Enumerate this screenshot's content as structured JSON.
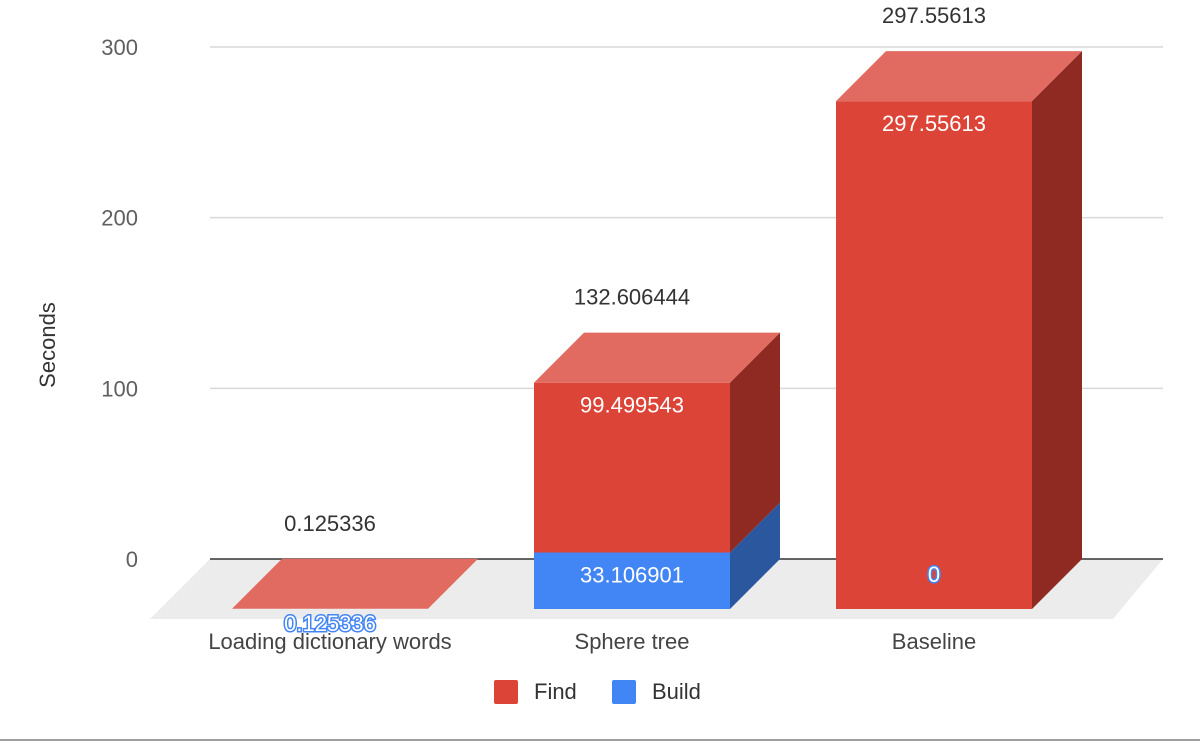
{
  "chart_data": {
    "type": "bar",
    "stacked": true,
    "style": "3d",
    "ylabel": "Seconds",
    "xlabel": "",
    "ylim": [
      0,
      300
    ],
    "yticks": [
      0,
      100,
      200,
      300
    ],
    "grid": true,
    "legend": "bottom",
    "categories": [
      "Loading dictionary words",
      "Sphere tree",
      "Baseline"
    ],
    "series": [
      {
        "name": "Build",
        "values": [
          0,
          33.106901,
          0
        ],
        "labels": [
          "",
          "33.106901",
          ""
        ],
        "color": "#4285f4",
        "side_color": "#2b579f"
      },
      {
        "name": "Find",
        "values": [
          0.125336,
          99.499543,
          297.55613
        ],
        "labels": [
          "0.125336",
          "99.499543",
          "297.55613"
        ],
        "color": "#db4437",
        "top_color": "#e16b60",
        "side_color": "#8e2a21"
      }
    ],
    "totals": [
      "0.125336",
      "132.606444",
      "297.55613"
    ],
    "zero_labels": [
      "",
      "",
      "0"
    ]
  }
}
